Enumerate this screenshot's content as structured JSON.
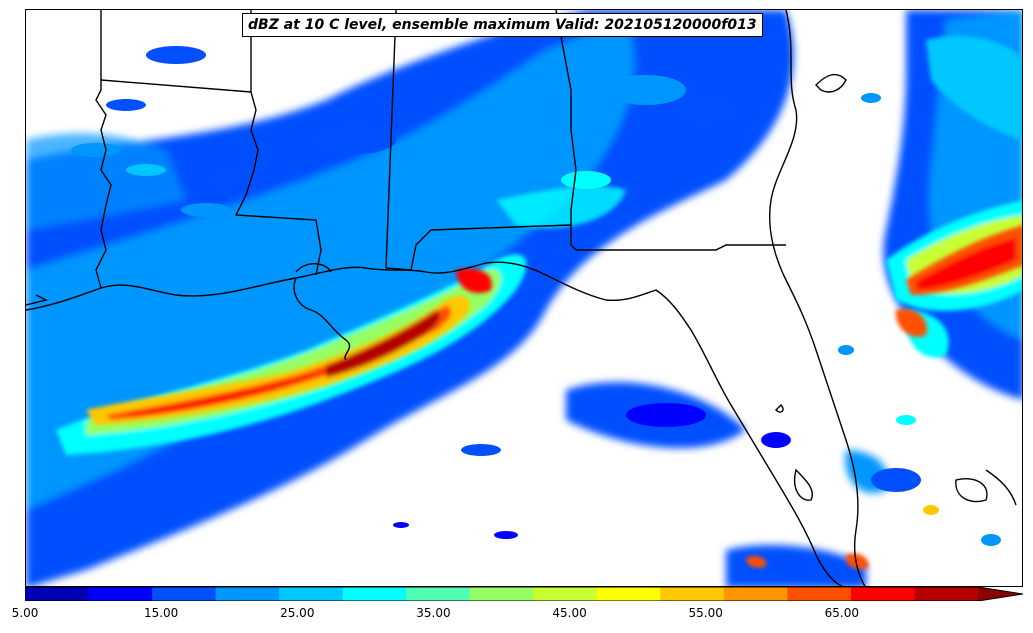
{
  "title": "dBZ at 10 C level, ensemble maximum Valid: 202105120000f013",
  "colorbar": {
    "colors": [
      "#0000b4",
      "#0000ff",
      "#0050ff",
      "#0096ff",
      "#00c8ff",
      "#00ffff",
      "#50ffb4",
      "#96ff64",
      "#c8ff32",
      "#ffff00",
      "#ffc800",
      "#ff9600",
      "#ff5000",
      "#ff0000",
      "#b40000"
    ],
    "extend_color": "#8c0000",
    "tick_labels": [
      "5.00",
      "15.00",
      "25.00",
      "35.00",
      "45.00",
      "55.00",
      "65.00"
    ],
    "tick_values": [
      5,
      15,
      25,
      35,
      45,
      55,
      65
    ],
    "range": [
      5,
      75
    ]
  },
  "map": {
    "region": "US Gulf Coast",
    "field": "radar reflectivity (dBZ)",
    "coastline_color": "#000000"
  }
}
